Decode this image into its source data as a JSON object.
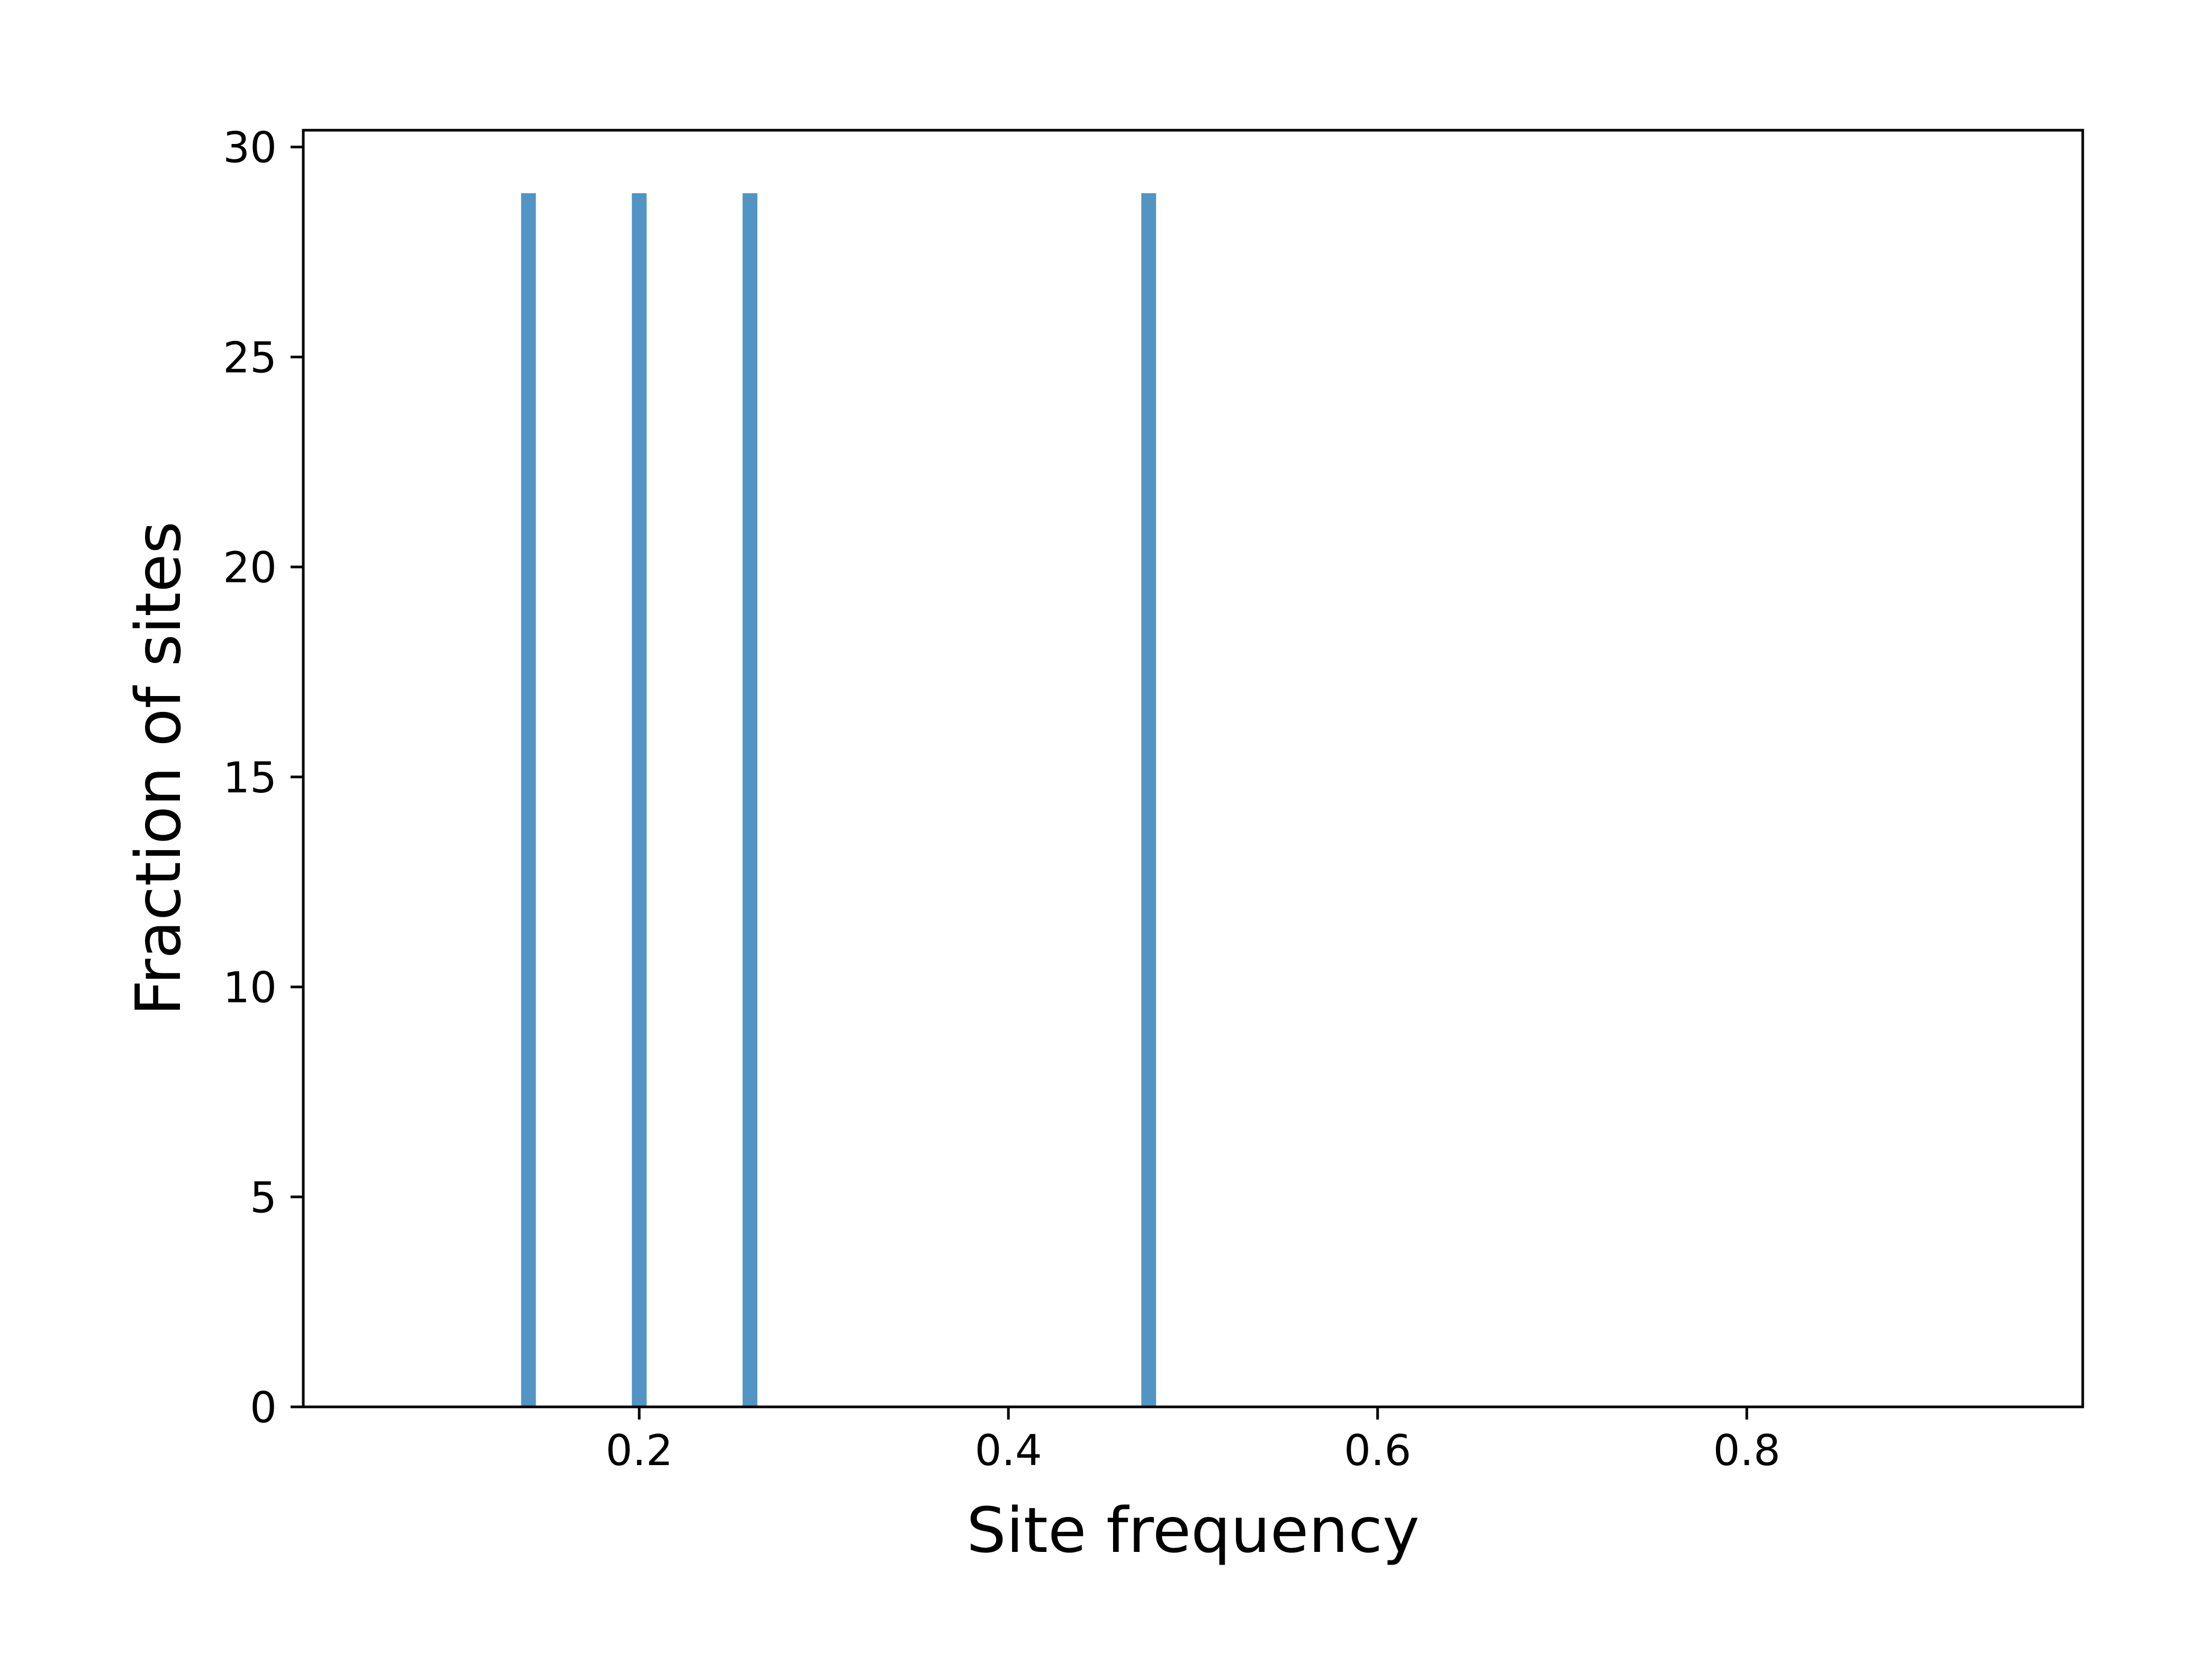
{
  "chart_data": {
    "type": "bar",
    "title": "",
    "xlabel": "Site frequency",
    "ylabel": "Fraction of sites",
    "xlim": [
      0.018,
      0.982
    ],
    "ylim": [
      0,
      30.4
    ],
    "grid": false,
    "bar_width": 0.008,
    "x": [
      0.14,
      0.2,
      0.26,
      0.476
    ],
    "values": [
      28.9,
      28.9,
      28.9,
      28.9
    ],
    "xticks": [
      {
        "value": 0.2,
        "label": "0.2"
      },
      {
        "value": 0.4,
        "label": "0.4"
      },
      {
        "value": 0.6,
        "label": "0.6"
      },
      {
        "value": 0.8,
        "label": "0.8"
      }
    ],
    "yticks": [
      {
        "value": 0,
        "label": "0"
      },
      {
        "value": 5,
        "label": "5"
      },
      {
        "value": 10,
        "label": "10"
      },
      {
        "value": 15,
        "label": "15"
      },
      {
        "value": 20,
        "label": "20"
      },
      {
        "value": 25,
        "label": "25"
      },
      {
        "value": 30,
        "label": "30"
      }
    ],
    "colors": {
      "bar": "#5294c4",
      "axes": "#000000",
      "background": "#ffffff"
    }
  }
}
